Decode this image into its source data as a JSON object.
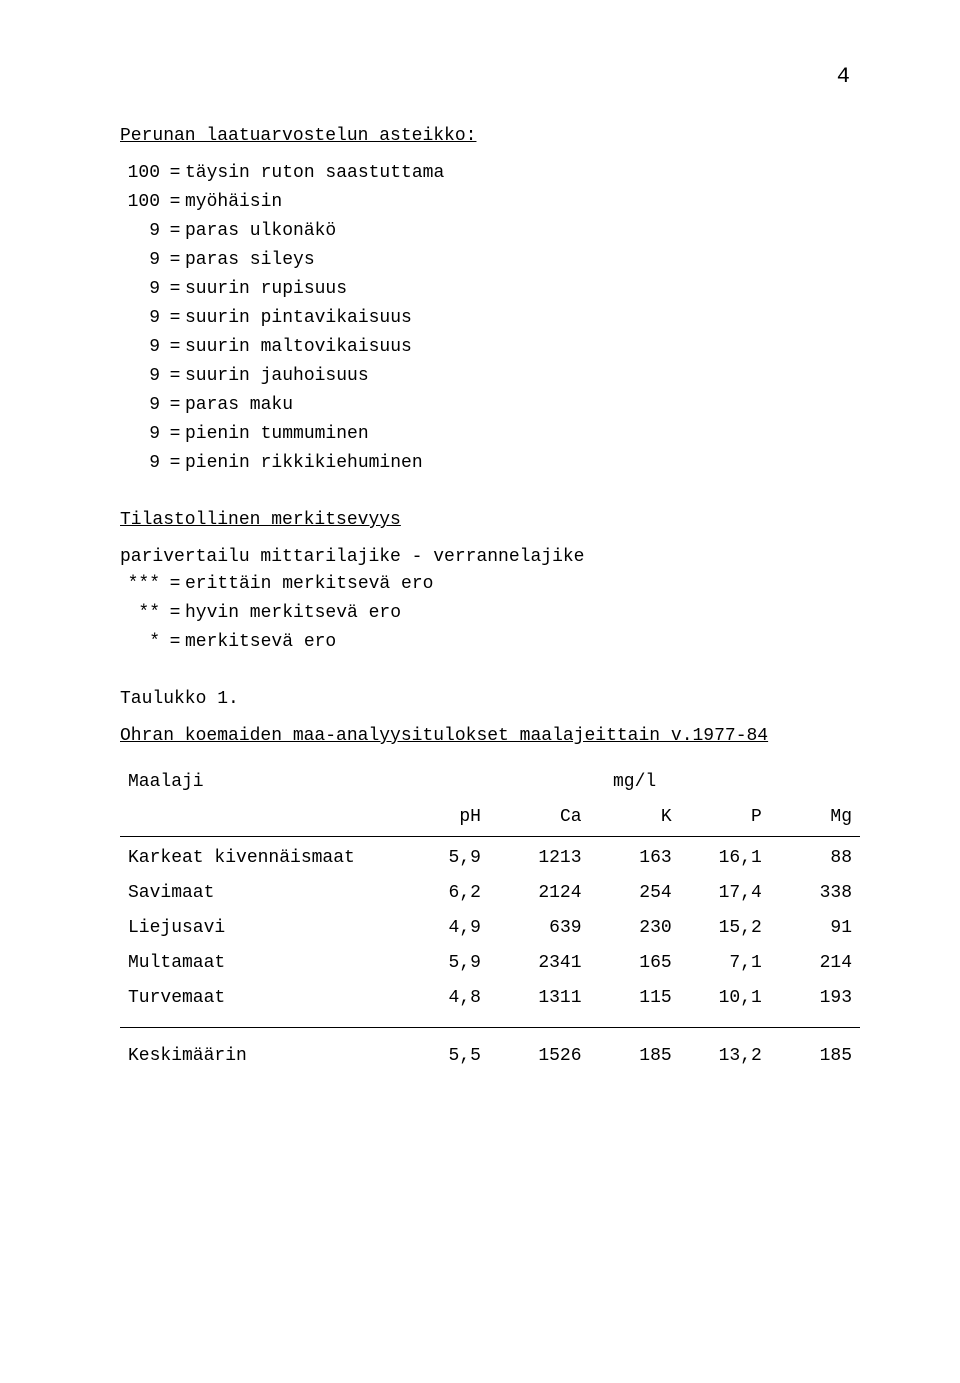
{
  "page_number": "4",
  "scale": {
    "heading": "Perunan laatuarvostelun asteikko:",
    "items": [
      {
        "lhs": "100",
        "rhs": "täysin ruton saastuttama"
      },
      {
        "lhs": "100",
        "rhs": "myöhäisin"
      },
      {
        "lhs": "9",
        "rhs": "paras ulkonäkö"
      },
      {
        "lhs": "9",
        "rhs": "paras sileys"
      },
      {
        "lhs": "9",
        "rhs": "suurin rupisuus"
      },
      {
        "lhs": "9",
        "rhs": "suurin pintavikaisuus"
      },
      {
        "lhs": "9",
        "rhs": "suurin maltovikaisuus"
      },
      {
        "lhs": "9",
        "rhs": "suurin jauhoisuus"
      },
      {
        "lhs": "9",
        "rhs": "paras maku"
      },
      {
        "lhs": "9",
        "rhs": "pienin tummuminen"
      },
      {
        "lhs": "9",
        "rhs": "pienin rikkikiehuminen"
      }
    ]
  },
  "significance": {
    "heading": "Tilastollinen merkitsevyys",
    "subheading": "parivertailu mittarilajike - verrannelajike",
    "items": [
      {
        "lhs": "***",
        "rhs": "erittäin merkitsevä ero"
      },
      {
        "lhs": "**",
        "rhs": "hyvin merkitsevä ero"
      },
      {
        "lhs": "*",
        "rhs": "merkitsevä ero"
      }
    ]
  },
  "table": {
    "title": "Taulukko 1.",
    "subtitle": "Ohran koemaiden maa-analyysitulokset maalajeittain v.1977-84",
    "unit_label": "mg/l",
    "columns": [
      "Maalaji",
      "pH",
      "Ca",
      "K",
      "P",
      "Mg"
    ],
    "rows": [
      [
        "Karkeat kivennäismaat",
        "5,9",
        "1213",
        "163",
        "16,1",
        "88"
      ],
      [
        "Savimaat",
        "6,2",
        "2124",
        "254",
        "17,4",
        "338"
      ],
      [
        "Liejusavi",
        "4,9",
        "639",
        "230",
        "15,2",
        "91"
      ],
      [
        "Multamaat",
        "5,9",
        "2341",
        "165",
        "7,1",
        "214"
      ],
      [
        "Turvemaat",
        "4,8",
        "1311",
        "115",
        "10,1",
        "193"
      ]
    ],
    "footer": [
      "Keskimäärin",
      "5,5",
      "1526",
      "185",
      "13,2",
      "185"
    ]
  },
  "eq": "="
}
